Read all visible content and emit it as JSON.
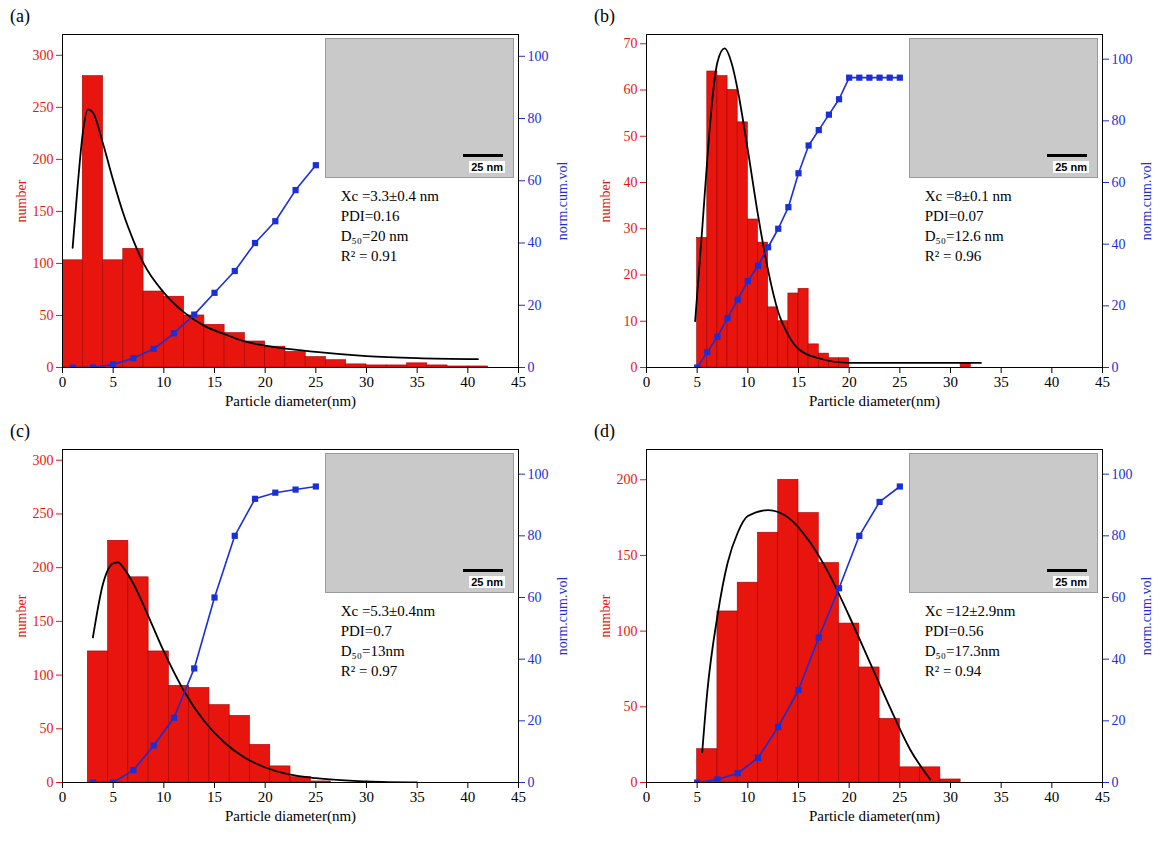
{
  "chart_data": [
    {
      "type": "histogram",
      "title": "(a)",
      "x_label": "Particle diameter(nm)",
      "y_label": "number",
      "y2_label": "norm.cum.vol",
      "xlim": [
        0,
        45
      ],
      "xticks": [
        0,
        5,
        10,
        15,
        20,
        25,
        30,
        35,
        40,
        45
      ],
      "ylim": [
        0,
        320
      ],
      "yticks": [
        0,
        50,
        100,
        150,
        200,
        250,
        300
      ],
      "y2lim": [
        0,
        107
      ],
      "y2ticks": [
        0,
        20,
        40,
        60,
        80,
        100
      ],
      "color": "#e8150e",
      "bins": [
        0,
        2,
        4,
        6,
        8,
        10,
        12,
        14,
        16,
        18,
        20,
        22,
        24,
        26,
        28,
        30,
        32,
        34,
        36,
        38,
        40,
        42
      ],
      "counts": [
        103,
        280,
        103,
        114,
        73,
        68,
        50,
        41,
        33,
        25,
        20,
        15,
        10,
        7,
        3,
        2,
        2,
        4,
        2,
        1,
        1
      ],
      "series": [
        {
          "type": "line",
          "color": "#000000",
          "x": [
            1,
            1.5,
            2,
            2.5,
            3,
            4,
            5,
            6,
            7,
            8,
            10,
            12,
            14,
            16,
            18,
            20,
            25,
            30,
            35,
            41
          ],
          "values": [
            115,
            175,
            225,
            248,
            245,
            215,
            180,
            148,
            122,
            100,
            72,
            53,
            40,
            32,
            25,
            21,
            15,
            11,
            9,
            8
          ]
        },
        {
          "type": "line",
          "marker": "square",
          "color": "#1a2fd6",
          "axis": "y2",
          "x": [
            1,
            3,
            5,
            7,
            9,
            11,
            13,
            15,
            17,
            19,
            21,
            23,
            25
          ],
          "values": [
            0,
            0,
            1,
            3,
            6,
            11,
            17,
            24,
            31,
            40,
            47,
            57,
            65
          ]
        }
      ],
      "annotations": [
        "Xc =3.3±0.4 nm",
        "PDI=0.16",
        "D₅₀=20 nm",
        "R² = 0.91"
      ],
      "image_scale_bar": "25 nm"
    },
    {
      "type": "histogram",
      "title": "(b)",
      "x_label": "Particle diameter(nm)",
      "y_label": "number",
      "y2_label": "norm.cum.vol",
      "xlim": [
        0,
        45
      ],
      "xticks": [
        0,
        5,
        10,
        15,
        20,
        25,
        30,
        35,
        40,
        45
      ],
      "ylim": [
        0,
        72
      ],
      "yticks": [
        0,
        10,
        20,
        30,
        40,
        50,
        60,
        70
      ],
      "y2lim": [
        0,
        108
      ],
      "y2ticks": [
        0,
        20,
        40,
        60,
        80,
        100
      ],
      "color": "#e8150e",
      "bins": [
        5,
        6,
        7,
        8,
        9,
        10,
        11,
        12,
        13,
        14,
        15,
        16,
        17,
        18,
        19,
        20,
        21,
        22,
        23,
        24,
        25,
        26,
        27,
        28,
        29,
        30,
        31,
        32
      ],
      "counts": [
        28,
        64,
        63,
        60,
        53,
        32,
        27,
        13,
        10,
        16,
        17,
        5,
        3,
        2,
        2,
        0,
        0,
        0,
        0,
        0,
        0,
        0,
        0,
        0,
        0,
        0,
        1
      ],
      "series": [
        {
          "type": "line",
          "color": "#000000",
          "x": [
            4.8,
            5.5,
            6,
            6.5,
            7,
            7.7,
            8.5,
            9,
            10,
            11,
            12,
            13,
            14,
            15,
            17,
            20,
            25,
            33
          ],
          "values": [
            10,
            30,
            45,
            58,
            66,
            69,
            65,
            60,
            47,
            33,
            21,
            12,
            7,
            4,
            2,
            1,
            1,
            1
          ]
        },
        {
          "type": "line",
          "marker": "square",
          "color": "#1a2fd6",
          "axis": "y2",
          "x": [
            5,
            6,
            7,
            8,
            9,
            10,
            11,
            12,
            13,
            14,
            15,
            16,
            17,
            18,
            19,
            20,
            21,
            22,
            23,
            24,
            25
          ],
          "values": [
            0,
            5,
            10,
            16,
            22,
            28,
            33,
            39,
            45,
            52,
            63,
            72,
            77,
            82,
            87,
            94,
            94,
            94,
            94,
            94,
            94
          ]
        }
      ],
      "annotations": [
        "Xc =8±0.1 nm",
        "PDI=0.07",
        "D₅₀=12.6 nm",
        "R² = 0.96"
      ],
      "image_scale_bar": "25 nm"
    },
    {
      "type": "histogram",
      "title": "(c)",
      "x_label": "Particle diameter(nm)",
      "y_label": "number",
      "y2_label": "norm.cum.vol",
      "xlim": [
        0,
        45
      ],
      "xticks": [
        0,
        5,
        10,
        15,
        20,
        25,
        30,
        35,
        40,
        45
      ],
      "ylim": [
        0,
        310
      ],
      "yticks": [
        0,
        50,
        100,
        150,
        200,
        250,
        300
      ],
      "y2lim": [
        0,
        108
      ],
      "y2ticks": [
        0,
        20,
        40,
        60,
        80,
        100
      ],
      "color": "#e8150e",
      "bins": [
        2.5,
        4.5,
        6.5,
        8.5,
        10.5,
        12.5,
        14.5,
        16.5,
        18.5,
        20.5,
        22.5,
        24.5,
        26.5
      ],
      "counts": [
        122,
        225,
        191,
        122,
        90,
        88,
        72,
        62,
        35,
        15,
        5,
        1
      ],
      "series": [
        {
          "type": "line",
          "color": "#000000",
          "x": [
            3,
            4,
            5,
            5.5,
            6,
            7,
            8,
            10,
            12,
            14,
            16,
            18,
            20,
            25,
            30,
            35
          ],
          "values": [
            135,
            185,
            204,
            205,
            200,
            185,
            165,
            122,
            85,
            57,
            37,
            23,
            14,
            4,
            1,
            0
          ]
        },
        {
          "type": "line",
          "marker": "square",
          "color": "#1a2fd6",
          "axis": "y2",
          "x": [
            3,
            5,
            7,
            9,
            11,
            13,
            15,
            17,
            19,
            21,
            23,
            25
          ],
          "values": [
            0,
            0,
            4,
            12,
            21,
            37,
            60,
            80,
            92,
            94,
            95,
            96
          ]
        }
      ],
      "annotations": [
        "Xc =5.3±0.4nm",
        "PDI=0.7",
        "D₅₀=13nm",
        "R² = 0.97"
      ],
      "image_scale_bar": "25 nm"
    },
    {
      "type": "histogram",
      "title": "(d)",
      "x_label": "Particle diameter(nm)",
      "y_label": "number",
      "y2_label": "norm.cum.vol",
      "xlim": [
        0,
        45
      ],
      "xticks": [
        0,
        5,
        10,
        15,
        20,
        25,
        30,
        35,
        40,
        45
      ],
      "ylim": [
        0,
        220
      ],
      "yticks": [
        0,
        50,
        100,
        150,
        200
      ],
      "y2lim": [
        0,
        108
      ],
      "y2ticks": [
        0,
        20,
        40,
        60,
        80,
        100
      ],
      "color": "#e8150e",
      "bins": [
        5,
        7,
        9,
        11,
        13,
        15,
        17,
        19,
        21,
        23,
        25,
        27,
        29,
        31
      ],
      "counts": [
        22,
        113,
        132,
        165,
        200,
        178,
        145,
        105,
        76,
        42,
        10,
        10,
        2
      ],
      "series": [
        {
          "type": "line",
          "color": "#000000",
          "x": [
            5.5,
            6,
            7,
            8,
            9,
            10,
            12,
            14,
            16,
            18,
            20,
            22,
            24,
            26,
            28
          ],
          "values": [
            20,
            60,
            110,
            145,
            165,
            176,
            180,
            175,
            160,
            138,
            110,
            80,
            50,
            22,
            2
          ]
        },
        {
          "type": "line",
          "marker": "square",
          "color": "#1a2fd6",
          "axis": "y2",
          "x": [
            5,
            7,
            9,
            11,
            13,
            15,
            17,
            19,
            21,
            23,
            25
          ],
          "values": [
            0,
            1,
            3,
            8,
            18,
            30,
            47,
            63,
            80,
            91,
            96
          ]
        }
      ],
      "annotations": [
        "Xc =12±2.9nm",
        "PDI=0.56",
        "D₅₀=17.3nm",
        "R² = 0.94"
      ],
      "image_scale_bar": "25 nm"
    }
  ]
}
